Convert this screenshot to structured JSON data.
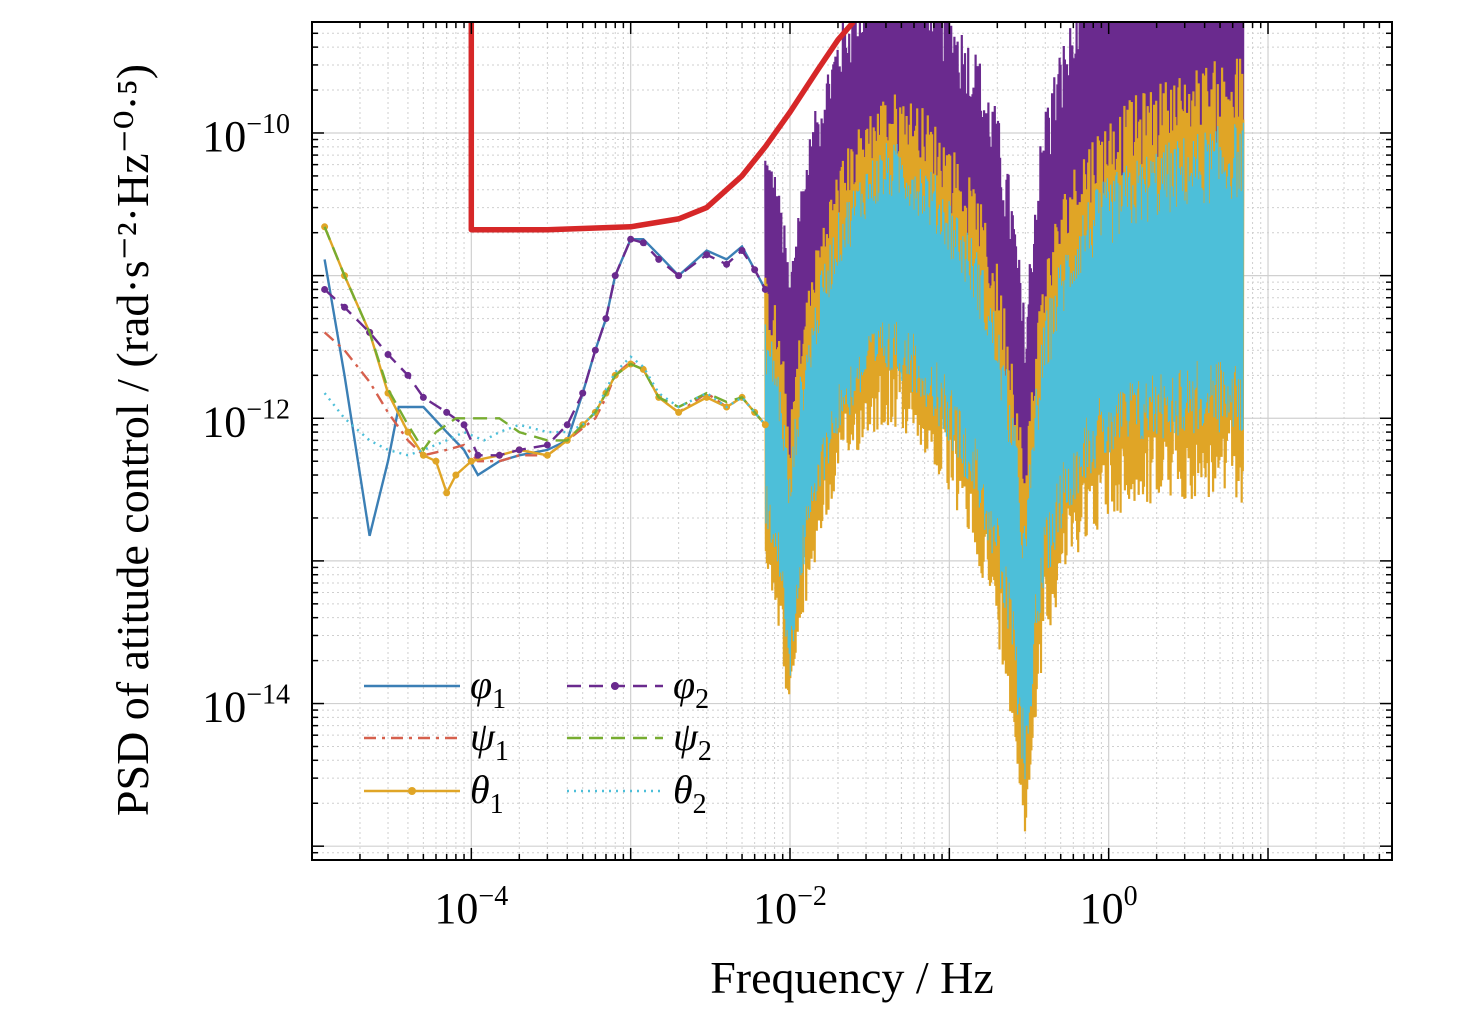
{
  "chart_data": {
    "type": "line",
    "xlabel": "Frequency / Hz",
    "ylabel": "PSD of atitude control / (rad·s⁻²·Hz⁻⁰·⁵)",
    "x_scale": "log",
    "y_scale": "log",
    "xlim": [
      1e-05,
      60.0
    ],
    "ylim": [
      8e-16,
      6e-10
    ],
    "grid": true,
    "legend_position": "bottom-left",
    "x_ticks": [
      {
        "value": 0.0001,
        "base": "10",
        "exp": "−4"
      },
      {
        "value": 0.01,
        "base": "10",
        "exp": "−2"
      },
      {
        "value": 1,
        "base": "10",
        "exp": "0"
      }
    ],
    "y_ticks": [
      {
        "value": 1e-10,
        "base": "10",
        "exp": "−10"
      },
      {
        "value": 1e-12,
        "base": "10",
        "exp": "−12"
      },
      {
        "value": 1e-14,
        "base": "10",
        "exp": "−14"
      }
    ],
    "limit": {
      "color": "#d62728",
      "points": [
        [
          0.0001,
          6e-10
        ],
        [
          0.0001,
          2.1e-11
        ],
        [
          0.0003,
          2.1e-11
        ],
        [
          0.001,
          2.2e-11
        ],
        [
          0.002,
          2.5e-11
        ],
        [
          0.003,
          3e-11
        ],
        [
          0.005,
          5e-11
        ],
        [
          0.007,
          8e-11
        ],
        [
          0.01,
          1.4e-10
        ],
        [
          0.015,
          2.8e-10
        ],
        [
          0.02,
          4.5e-10
        ],
        [
          0.025,
          6e-10
        ]
      ]
    },
    "series": [
      {
        "name": "φ",
        "sub": "1",
        "color": "#3b7fb5",
        "style": "solid",
        "marker": false,
        "group": "phi",
        "points": [
          [
            1.2e-05,
            1.3e-11
          ],
          [
            1.6e-05,
            2e-12
          ],
          [
            2.3e-05,
            1.5e-13
          ],
          [
            3e-05,
            5e-13
          ],
          [
            3.5e-05,
            1.2e-12
          ],
          [
            5e-05,
            1.2e-12
          ],
          [
            7e-05,
            8e-13
          ],
          [
            9e-05,
            6e-13
          ],
          [
            0.00011,
            4e-13
          ],
          [
            0.00015,
            5e-13
          ],
          [
            0.0002,
            5.5e-13
          ],
          [
            0.0003,
            6e-13
          ],
          [
            0.0004,
            7e-13
          ],
          [
            0.0005,
            1.5e-12
          ],
          [
            0.0006,
            3e-12
          ],
          [
            0.0007,
            5e-12
          ],
          [
            0.0008,
            1e-11
          ],
          [
            0.001,
            1.8e-11
          ],
          [
            0.0012,
            1.8e-11
          ],
          [
            0.0015,
            1.4e-11
          ],
          [
            0.002,
            1e-11
          ],
          [
            0.003,
            1.5e-11
          ],
          [
            0.004,
            1.3e-11
          ],
          [
            0.005,
            1.6e-11
          ],
          [
            0.006,
            1.1e-11
          ],
          [
            0.007,
            8e-12
          ]
        ]
      },
      {
        "name": "ψ",
        "sub": "1",
        "color": "#d6604d",
        "style": "dashdot",
        "marker": false,
        "group": "low",
        "points": [
          [
            1.2e-05,
            4e-12
          ],
          [
            1.6e-05,
            3e-12
          ],
          [
            2.3e-05,
            1.8e-12
          ],
          [
            3e-05,
            1.1e-12
          ],
          [
            4e-05,
            7e-13
          ],
          [
            5e-05,
            5.5e-13
          ],
          [
            7e-05,
            6e-13
          ],
          [
            9e-05,
            6.5e-13
          ],
          [
            0.00011,
            5e-13
          ],
          [
            0.00015,
            5e-13
          ],
          [
            0.0002,
            5.5e-13
          ],
          [
            0.0003,
            5.5e-13
          ],
          [
            0.0004,
            7e-13
          ],
          [
            0.0005,
            8.5e-13
          ],
          [
            0.0006,
            1e-12
          ],
          [
            0.0007,
            1.4e-12
          ],
          [
            0.0008,
            2e-12
          ],
          [
            0.001,
            2.5e-12
          ],
          [
            0.0012,
            2.2e-12
          ],
          [
            0.0015,
            1.4e-12
          ],
          [
            0.002,
            1.1e-12
          ],
          [
            0.003,
            1.5e-12
          ],
          [
            0.004,
            1.2e-12
          ],
          [
            0.005,
            1.4e-12
          ],
          [
            0.006,
            1.1e-12
          ],
          [
            0.007,
            9e-13
          ]
        ]
      },
      {
        "name": "θ",
        "sub": "1",
        "color": "#e0a526",
        "style": "solid",
        "marker": true,
        "group": "low",
        "points": [
          [
            1.2e-05,
            2.2e-11
          ],
          [
            1.6e-05,
            1e-11
          ],
          [
            2.3e-05,
            4e-12
          ],
          [
            3e-05,
            1.5e-12
          ],
          [
            4e-05,
            8e-13
          ],
          [
            5e-05,
            5.5e-13
          ],
          [
            6e-05,
            5e-13
          ],
          [
            7e-05,
            3e-13
          ],
          [
            8e-05,
            4e-13
          ],
          [
            0.0001,
            5e-13
          ],
          [
            0.00015,
            5.5e-13
          ],
          [
            0.0002,
            6e-13
          ],
          [
            0.0003,
            5.5e-13
          ],
          [
            0.0004,
            7e-13
          ],
          [
            0.0005,
            9e-13
          ],
          [
            0.0006,
            1.1e-12
          ],
          [
            0.0007,
            1.5e-12
          ],
          [
            0.0008,
            2e-12
          ],
          [
            0.001,
            2.4e-12
          ],
          [
            0.0012,
            2.2e-12
          ],
          [
            0.0015,
            1.4e-12
          ],
          [
            0.002,
            1.1e-12
          ],
          [
            0.003,
            1.4e-12
          ],
          [
            0.004,
            1.2e-12
          ],
          [
            0.005,
            1.4e-12
          ],
          [
            0.006,
            1.1e-12
          ],
          [
            0.007,
            9e-13
          ]
        ]
      },
      {
        "name": "φ",
        "sub": "2",
        "color": "#6a2a8e",
        "style": "dashed",
        "marker": true,
        "group": "phi",
        "points": [
          [
            1.2e-05,
            8e-12
          ],
          [
            1.6e-05,
            6e-12
          ],
          [
            2.3e-05,
            4e-12
          ],
          [
            3e-05,
            2.8e-12
          ],
          [
            4e-05,
            2e-12
          ],
          [
            5e-05,
            1.4e-12
          ],
          [
            7e-05,
            1.1e-12
          ],
          [
            9e-05,
            9e-13
          ],
          [
            0.00011,
            5.5e-13
          ],
          [
            0.00015,
            5.5e-13
          ],
          [
            0.0002,
            6e-13
          ],
          [
            0.0003,
            6.5e-13
          ],
          [
            0.0004,
            9e-13
          ],
          [
            0.0005,
            1.5e-12
          ],
          [
            0.0006,
            3e-12
          ],
          [
            0.0007,
            5e-12
          ],
          [
            0.0008,
            1e-11
          ],
          [
            0.001,
            1.8e-11
          ],
          [
            0.0012,
            1.7e-11
          ],
          [
            0.0015,
            1.3e-11
          ],
          [
            0.002,
            1e-11
          ],
          [
            0.003,
            1.4e-11
          ],
          [
            0.004,
            1.2e-11
          ],
          [
            0.005,
            1.5e-11
          ],
          [
            0.006,
            1.1e-11
          ],
          [
            0.007,
            8e-12
          ]
        ]
      },
      {
        "name": "ψ",
        "sub": "2",
        "color": "#77ac30",
        "style": "dashed",
        "marker": false,
        "group": "low",
        "points": [
          [
            1.2e-05,
            2.2e-11
          ],
          [
            1.6e-05,
            1e-11
          ],
          [
            2.3e-05,
            4e-12
          ],
          [
            3e-05,
            1.6e-12
          ],
          [
            4e-05,
            9e-13
          ],
          [
            5e-05,
            6e-13
          ],
          [
            6e-05,
            8e-13
          ],
          [
            8e-05,
            1e-12
          ],
          [
            0.0001,
            1e-12
          ],
          [
            0.00015,
            1e-12
          ],
          [
            0.0002,
            8e-13
          ],
          [
            0.0003,
            7e-13
          ],
          [
            0.0004,
            7e-13
          ],
          [
            0.0005,
            9e-13
          ],
          [
            0.0006,
            1.1e-12
          ],
          [
            0.0007,
            1.5e-12
          ],
          [
            0.0008,
            2e-12
          ],
          [
            0.001,
            2.4e-12
          ],
          [
            0.0012,
            2.2e-12
          ],
          [
            0.0015,
            1.4e-12
          ],
          [
            0.002,
            1.2e-12
          ],
          [
            0.003,
            1.5e-12
          ],
          [
            0.004,
            1.3e-12
          ],
          [
            0.005,
            1.4e-12
          ],
          [
            0.006,
            1.1e-12
          ],
          [
            0.007,
            9e-13
          ]
        ]
      },
      {
        "name": "θ",
        "sub": "2",
        "color": "#4dbfd9",
        "style": "dotted",
        "marker": false,
        "group": "low",
        "points": [
          [
            1.2e-05,
            1.5e-12
          ],
          [
            1.6e-05,
            1e-12
          ],
          [
            2.3e-05,
            7e-13
          ],
          [
            3e-05,
            6e-13
          ],
          [
            4e-05,
            5.5e-13
          ],
          [
            5e-05,
            6e-13
          ],
          [
            7e-05,
            7e-13
          ],
          [
            9e-05,
            8e-13
          ],
          [
            0.00012,
            7e-13
          ],
          [
            0.00015,
            8e-13
          ],
          [
            0.0002,
            9e-13
          ],
          [
            0.0003,
            8e-13
          ],
          [
            0.0004,
            8e-13
          ],
          [
            0.0005,
            9e-13
          ],
          [
            0.0006,
            1.1e-12
          ],
          [
            0.0007,
            1.6e-12
          ],
          [
            0.0008,
            2.1e-12
          ],
          [
            0.001,
            2.7e-12
          ],
          [
            0.0012,
            2.3e-12
          ],
          [
            0.0015,
            1.5e-12
          ],
          [
            0.002,
            1.2e-12
          ],
          [
            0.003,
            1.5e-12
          ],
          [
            0.004,
            1.2e-12
          ],
          [
            0.005,
            1.4e-12
          ],
          [
            0.006,
            1.1e-12
          ],
          [
            0.007,
            9e-13
          ]
        ]
      }
    ],
    "bands": [
      {
        "group": "phi",
        "color": "#6a2a8e",
        "center": [
          [
            0.007,
            8e-12
          ],
          [
            0.008,
            5e-12
          ],
          [
            0.009,
            2.5e-12
          ],
          [
            0.01,
            9e-13
          ],
          [
            0.011,
            2.5e-12
          ],
          [
            0.013,
            7e-12
          ],
          [
            0.016,
            1.8e-11
          ],
          [
            0.02,
            4e-11
          ],
          [
            0.03,
            8e-11
          ],
          [
            0.04,
            1.1e-10
          ],
          [
            0.05,
            1.05e-10
          ],
          [
            0.07,
            7e-11
          ],
          [
            0.1,
            4e-11
          ],
          [
            0.15,
            1.7e-11
          ],
          [
            0.2,
            6e-12
          ],
          [
            0.25,
            1.5e-12
          ],
          [
            0.3,
            2e-13
          ],
          [
            0.34,
            1.5e-12
          ],
          [
            0.4,
            6e-12
          ],
          [
            0.5,
            1.4e-11
          ],
          [
            0.7,
            3e-11
          ],
          [
            1,
            5e-11
          ],
          [
            1.5,
            6.5e-11
          ],
          [
            2,
            7.5e-11
          ],
          [
            3,
            8.5e-11
          ],
          [
            4,
            9e-11
          ],
          [
            6,
            9.5e-11
          ],
          [
            7,
            9.5e-11
          ]
        ],
        "halfwidth_decades": [
          [
            0.007,
            0.02
          ],
          [
            0.03,
            0.07
          ],
          [
            0.1,
            0.12
          ],
          [
            0.3,
            0.15
          ],
          [
            2,
            0.22
          ],
          [
            7,
            0.24
          ]
        ]
      },
      {
        "group": "low",
        "color": "#e0a526",
        "inner_color": "#4dbfd9",
        "center": [
          [
            0.007,
            9e-13
          ],
          [
            0.008,
            6e-13
          ],
          [
            0.009,
            2.5e-13
          ],
          [
            0.01,
            7e-14
          ],
          [
            0.011,
            2.5e-13
          ],
          [
            0.013,
            7e-13
          ],
          [
            0.016,
            2e-12
          ],
          [
            0.02,
            4.5e-12
          ],
          [
            0.03,
            1e-11
          ],
          [
            0.04,
            1.3e-11
          ],
          [
            0.05,
            1.25e-11
          ],
          [
            0.07,
            9e-12
          ],
          [
            0.1,
            5e-12
          ],
          [
            0.15,
            2e-12
          ],
          [
            0.2,
            6e-13
          ],
          [
            0.25,
            1.5e-13
          ],
          [
            0.3,
            2e-14
          ],
          [
            0.34,
            1.5e-13
          ],
          [
            0.4,
            6e-13
          ],
          [
            0.5,
            1.5e-12
          ],
          [
            0.7,
            3.5e-12
          ],
          [
            1,
            5e-12
          ],
          [
            1.5,
            6.5e-12
          ],
          [
            2,
            7.5e-12
          ],
          [
            3,
            8.5e-12
          ],
          [
            4,
            9e-12
          ],
          [
            6,
            9.5e-12
          ],
          [
            7,
            9.5e-12
          ]
        ],
        "halfwidth_decades": [
          [
            0.007,
            0.02
          ],
          [
            0.03,
            0.06
          ],
          [
            0.1,
            0.1
          ],
          [
            0.3,
            0.13
          ],
          [
            2,
            0.17
          ],
          [
            7,
            0.2
          ]
        ]
      }
    ]
  }
}
